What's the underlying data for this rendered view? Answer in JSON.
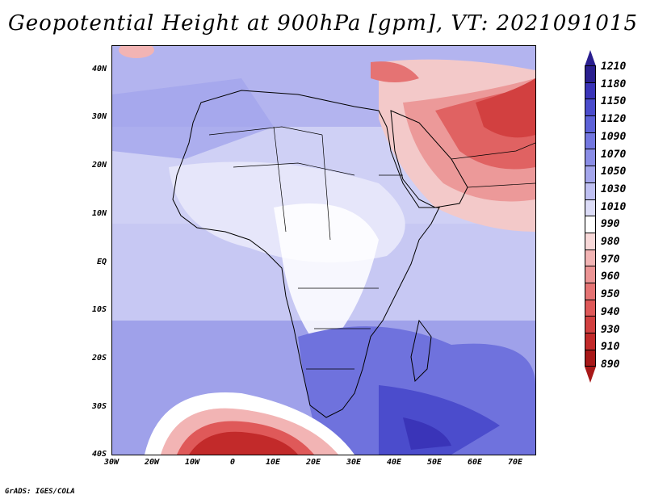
{
  "title": "Geopotential Height at 900hPa [gpm], VT: 2021091015",
  "credit": "GrADS: IGES/COLA",
  "lat_labels": [
    "40N",
    "30N",
    "20N",
    "10N",
    "EQ",
    "10S",
    "20S",
    "30S",
    "40S"
  ],
  "lon_labels": [
    "30W",
    "20W",
    "10W",
    "0",
    "10E",
    "20E",
    "30E",
    "40E",
    "50E",
    "60E",
    "70E"
  ],
  "colorbar": {
    "labels": [
      "1210",
      "1180",
      "1150",
      "1120",
      "1090",
      "1070",
      "1050",
      "1030",
      "1010",
      "990",
      "980",
      "970",
      "960",
      "950",
      "940",
      "930",
      "910",
      "890"
    ],
    "colors": [
      "#2a1f8f",
      "#3a34b8",
      "#4b4ccc",
      "#5d62d8",
      "#7377e0",
      "#8a8de6",
      "#a4a6ec",
      "#bfc0f2",
      "#dcdcf7",
      "#ffffff",
      "#f8d8d8",
      "#f2b4b4",
      "#ec9494",
      "#e57373",
      "#df5959",
      "#d24040",
      "#c22a2a",
      "#a81818"
    ],
    "top_arrow_color": "#2a1f8f",
    "bottom_arrow_color": "#a81818"
  }
}
